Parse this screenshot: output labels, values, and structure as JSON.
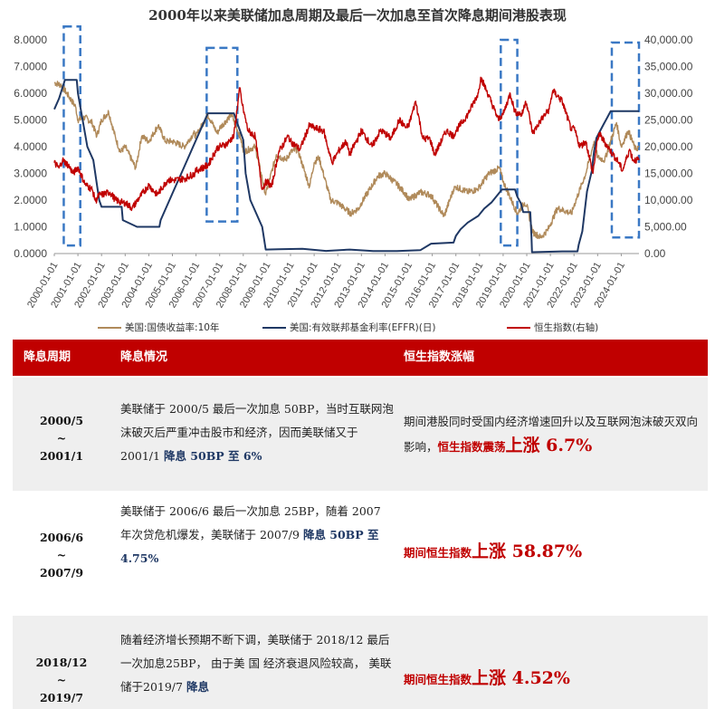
{
  "chart_data": {
    "type": "line",
    "title": "2000年以来美联储加息周期及最后一次加息至首次降息期间港股表现",
    "x_ticks": [
      "2000-01-01",
      "2001-01-01",
      "2002-01-01",
      "2003-01-01",
      "2004-01-01",
      "2005-01-01",
      "2006-01-01",
      "2007-01-01",
      "2008-01-01",
      "2009-01-01",
      "2010-01-01",
      "2011-01-01",
      "2012-01-01",
      "2013-01-01",
      "2014-01-01",
      "2015-01-01",
      "2016-01-01",
      "2017-01-01",
      "2018-01-01",
      "2019-01-01",
      "2020-01-01",
      "2021-01-01",
      "2022-01-01",
      "2023-01-01",
      "2024-01-01"
    ],
    "x_range": [
      2000.0,
      2024.75
    ],
    "y_left": {
      "range": [
        0,
        8
      ],
      "ticks": [
        "0.0000",
        "1.0000",
        "2.0000",
        "3.0000",
        "4.0000",
        "5.0000",
        "6.0000",
        "7.0000",
        "8.0000"
      ]
    },
    "y_right": {
      "range": [
        0,
        40000
      ],
      "ticks": [
        "0.00",
        "5,000.00",
        "10,000.00",
        "15,000.00",
        "20,000.00",
        "25,000.00",
        "30,000.00",
        "35,000.00",
        "40,000.00"
      ]
    },
    "series": [
      {
        "name": "美国:国债收益率:10年",
        "axis": "left",
        "color": "#b08a5a",
        "points": [
          [
            2000.0,
            6.4
          ],
          [
            2000.3,
            6.3
          ],
          [
            2000.6,
            5.9
          ],
          [
            2000.9,
            5.5
          ],
          [
            2001.0,
            5.0
          ],
          [
            2001.3,
            5.1
          ],
          [
            2001.6,
            4.9
          ],
          [
            2001.8,
            4.4
          ],
          [
            2002.0,
            5.0
          ],
          [
            2002.3,
            5.3
          ],
          [
            2002.6,
            4.3
          ],
          [
            2002.8,
            3.8
          ],
          [
            2003.0,
            4.0
          ],
          [
            2003.45,
            3.2
          ],
          [
            2003.7,
            4.4
          ],
          [
            2004.0,
            4.2
          ],
          [
            2004.4,
            4.8
          ],
          [
            2004.7,
            4.2
          ],
          [
            2005.0,
            4.2
          ],
          [
            2005.5,
            4.0
          ],
          [
            2005.9,
            4.5
          ],
          [
            2006.0,
            4.4
          ],
          [
            2006.5,
            5.2
          ],
          [
            2006.9,
            4.5
          ],
          [
            2007.0,
            4.7
          ],
          [
            2007.5,
            5.2
          ],
          [
            2007.9,
            4.3
          ],
          [
            2008.0,
            3.8
          ],
          [
            2008.5,
            4.0
          ],
          [
            2008.95,
            2.2
          ],
          [
            2009.0,
            2.4
          ],
          [
            2009.4,
            3.7
          ],
          [
            2009.8,
            3.5
          ],
          [
            2010.0,
            3.8
          ],
          [
            2010.3,
            3.9
          ],
          [
            2010.8,
            2.5
          ],
          [
            2011.0,
            3.4
          ],
          [
            2011.2,
            3.6
          ],
          [
            2011.7,
            2.0
          ],
          [
            2012.0,
            1.9
          ],
          [
            2012.55,
            1.5
          ],
          [
            2012.9,
            1.7
          ],
          [
            2013.0,
            1.9
          ],
          [
            2013.7,
            2.9
          ],
          [
            2014.0,
            3.0
          ],
          [
            2014.5,
            2.6
          ],
          [
            2014.9,
            2.2
          ],
          [
            2015.0,
            2.0
          ],
          [
            2015.5,
            2.3
          ],
          [
            2015.9,
            2.2
          ],
          [
            2016.0,
            2.1
          ],
          [
            2016.5,
            1.4
          ],
          [
            2016.9,
            2.4
          ],
          [
            2017.0,
            2.5
          ],
          [
            2017.5,
            2.3
          ],
          [
            2017.9,
            2.4
          ],
          [
            2018.0,
            2.5
          ],
          [
            2018.4,
            3.0
          ],
          [
            2018.85,
            3.2
          ],
          [
            2019.0,
            2.7
          ],
          [
            2019.6,
            1.5
          ],
          [
            2019.9,
            1.9
          ],
          [
            2020.0,
            1.8
          ],
          [
            2020.25,
            0.8
          ],
          [
            2020.6,
            0.6
          ],
          [
            2020.9,
            0.9
          ],
          [
            2021.0,
            1.1
          ],
          [
            2021.3,
            1.7
          ],
          [
            2021.9,
            1.5
          ],
          [
            2022.0,
            1.8
          ],
          [
            2022.5,
            3.0
          ],
          [
            2022.85,
            4.2
          ],
          [
            2023.0,
            3.6
          ],
          [
            2023.3,
            3.5
          ],
          [
            2023.8,
            4.9
          ],
          [
            2024.0,
            4.0
          ],
          [
            2024.3,
            4.6
          ],
          [
            2024.6,
            3.9
          ],
          [
            2024.75,
            4.0
          ]
        ]
      },
      {
        "name": "美国:有效联邦基金利率(EFFR)(日)",
        "axis": "left",
        "color": "#1f3864",
        "points": [
          [
            2000.0,
            5.4
          ],
          [
            2000.2,
            5.8
          ],
          [
            2000.45,
            6.5
          ],
          [
            2000.95,
            6.5
          ],
          [
            2001.0,
            6.0
          ],
          [
            2001.2,
            5.0
          ],
          [
            2001.4,
            4.0
          ],
          [
            2001.65,
            3.5
          ],
          [
            2001.9,
            2.0
          ],
          [
            2002.0,
            1.75
          ],
          [
            2002.85,
            1.75
          ],
          [
            2002.9,
            1.25
          ],
          [
            2003.5,
            1.0
          ],
          [
            2004.45,
            1.0
          ],
          [
            2004.5,
            1.25
          ],
          [
            2005.0,
            2.25
          ],
          [
            2005.5,
            3.25
          ],
          [
            2006.0,
            4.25
          ],
          [
            2006.5,
            5.25
          ],
          [
            2007.6,
            5.25
          ],
          [
            2007.8,
            4.75
          ],
          [
            2008.0,
            4.25
          ],
          [
            2008.1,
            3.0
          ],
          [
            2008.3,
            2.0
          ],
          [
            2008.8,
            1.0
          ],
          [
            2008.95,
            0.15
          ],
          [
            2009.5,
            0.16
          ],
          [
            2010.5,
            0.18
          ],
          [
            2011.5,
            0.1
          ],
          [
            2012.5,
            0.15
          ],
          [
            2013.5,
            0.09
          ],
          [
            2014.5,
            0.09
          ],
          [
            2015.5,
            0.13
          ],
          [
            2015.95,
            0.37
          ],
          [
            2016.9,
            0.41
          ],
          [
            2017.0,
            0.66
          ],
          [
            2017.2,
            0.91
          ],
          [
            2017.5,
            1.16
          ],
          [
            2017.95,
            1.41
          ],
          [
            2018.2,
            1.68
          ],
          [
            2018.5,
            1.91
          ],
          [
            2018.75,
            2.18
          ],
          [
            2018.95,
            2.4
          ],
          [
            2019.5,
            2.4
          ],
          [
            2019.6,
            2.13
          ],
          [
            2019.75,
            1.88
          ],
          [
            2019.85,
            1.55
          ],
          [
            2020.15,
            1.55
          ],
          [
            2020.2,
            0.65
          ],
          [
            2020.22,
            0.05
          ],
          [
            2021.5,
            0.08
          ],
          [
            2022.15,
            0.08
          ],
          [
            2022.2,
            0.33
          ],
          [
            2022.35,
            0.83
          ],
          [
            2022.45,
            1.58
          ],
          [
            2022.55,
            2.33
          ],
          [
            2022.75,
            3.08
          ],
          [
            2022.85,
            3.83
          ],
          [
            2022.95,
            4.33
          ],
          [
            2023.1,
            4.58
          ],
          [
            2023.25,
            4.83
          ],
          [
            2023.4,
            5.08
          ],
          [
            2023.55,
            5.33
          ],
          [
            2024.75,
            5.33
          ]
        ]
      },
      {
        "name": "恒生指数(右轴)",
        "axis": "right",
        "color": "#c00000",
        "points": [
          [
            2000.0,
            17000
          ],
          [
            2000.2,
            16000
          ],
          [
            2000.35,
            17500
          ],
          [
            2000.6,
            16500
          ],
          [
            2000.8,
            15000
          ],
          [
            2001.0,
            16200
          ],
          [
            2001.3,
            13000
          ],
          [
            2001.6,
            12000
          ],
          [
            2001.75,
            9800
          ],
          [
            2001.9,
            11000
          ],
          [
            2002.0,
            11000
          ],
          [
            2002.35,
            11500
          ],
          [
            2002.6,
            10000
          ],
          [
            2002.9,
            9500
          ],
          [
            2003.0,
            9500
          ],
          [
            2003.3,
            8500
          ],
          [
            2003.6,
            10500
          ],
          [
            2003.95,
            12500
          ],
          [
            2004.0,
            12800
          ],
          [
            2004.35,
            11000
          ],
          [
            2004.8,
            13800
          ],
          [
            2005.0,
            13700
          ],
          [
            2005.5,
            14000
          ],
          [
            2005.95,
            15000
          ],
          [
            2006.0,
            15500
          ],
          [
            2006.5,
            16500
          ],
          [
            2006.9,
            19800
          ],
          [
            2007.0,
            20000
          ],
          [
            2007.3,
            20500
          ],
          [
            2007.6,
            22000
          ],
          [
            2007.85,
            31000
          ],
          [
            2007.95,
            28000
          ],
          [
            2008.0,
            27000
          ],
          [
            2008.2,
            23000
          ],
          [
            2008.5,
            22000
          ],
          [
            2008.8,
            12000
          ],
          [
            2008.9,
            13000
          ],
          [
            2009.0,
            13500
          ],
          [
            2009.2,
            12500
          ],
          [
            2009.5,
            19000
          ],
          [
            2009.9,
            22000
          ],
          [
            2010.0,
            21000
          ],
          [
            2010.4,
            19500
          ],
          [
            2010.8,
            24000
          ],
          [
            2011.0,
            23500
          ],
          [
            2011.4,
            23000
          ],
          [
            2011.75,
            17000
          ],
          [
            2011.95,
            18500
          ],
          [
            2012.0,
            19000
          ],
          [
            2012.35,
            21000
          ],
          [
            2012.5,
            18500
          ],
          [
            2012.95,
            22500
          ],
          [
            2013.0,
            23000
          ],
          [
            2013.45,
            20000
          ],
          [
            2013.8,
            23000
          ],
          [
            2014.0,
            22500
          ],
          [
            2014.25,
            21500
          ],
          [
            2014.6,
            25000
          ],
          [
            2014.9,
            23500
          ],
          [
            2015.0,
            24000
          ],
          [
            2015.3,
            28500
          ],
          [
            2015.6,
            21500
          ],
          [
            2015.9,
            21500
          ],
          [
            2016.0,
            20000
          ],
          [
            2016.1,
            18500
          ],
          [
            2016.6,
            23000
          ],
          [
            2016.9,
            22000
          ],
          [
            2017.0,
            23000
          ],
          [
            2017.5,
            26000
          ],
          [
            2017.95,
            30000
          ],
          [
            2018.05,
            33000
          ],
          [
            2018.3,
            30500
          ],
          [
            2018.8,
            25000
          ],
          [
            2018.95,
            26000
          ],
          [
            2019.0,
            26000
          ],
          [
            2019.3,
            30000
          ],
          [
            2019.5,
            26500
          ],
          [
            2019.8,
            26000
          ],
          [
            2019.95,
            28500
          ],
          [
            2020.0,
            28000
          ],
          [
            2020.25,
            22500
          ],
          [
            2020.6,
            25000
          ],
          [
            2020.95,
            27000
          ],
          [
            2021.1,
            30500
          ],
          [
            2021.5,
            28500
          ],
          [
            2021.9,
            23000
          ],
          [
            2022.0,
            23500
          ],
          [
            2022.25,
            20000
          ],
          [
            2022.5,
            21000
          ],
          [
            2022.8,
            15000
          ],
          [
            2022.95,
            20000
          ],
          [
            2023.05,
            22500
          ],
          [
            2023.5,
            19500
          ],
          [
            2023.9,
            17000
          ],
          [
            2024.05,
            15500
          ],
          [
            2024.35,
            19500
          ],
          [
            2024.5,
            17500
          ],
          [
            2024.75,
            17500
          ]
        ]
      }
    ],
    "highlight_periods": [
      {
        "from": 2000.4,
        "to": 2001.1,
        "left_range": [
          0.3,
          8.5
        ]
      },
      {
        "from": 2006.45,
        "to": 2007.75,
        "left_range": [
          1.2,
          7.7
        ]
      },
      {
        "from": 2018.9,
        "to": 2019.6,
        "left_range": [
          0.3,
          8.0
        ]
      },
      {
        "from": 2023.6,
        "to": 2024.75,
        "left_range": [
          0.6,
          7.9
        ]
      }
    ],
    "legend_position": "bottom"
  },
  "table": {
    "headers": [
      "降息周期",
      "降息情况",
      "恒生指数涨幅"
    ],
    "rows": [
      {
        "period_start": "2000/5",
        "period_sep": "~",
        "period_end": "2001/1",
        "desc_text": "美联储于 2000/5 最后一次加息 50BP，当时互联网泡沫破灭后严重冲击股市和经济，因而美联储又于 2001/1 ",
        "desc_highlight": "降息 50BP 至 6%",
        "perf_text": "期间港股同时受国内经济增速回升以及互联网泡沫破灭双向影响，",
        "perf_red": "恒生指数震荡",
        "perf_big": "上涨 6.7%"
      },
      {
        "period_start": "2006/6",
        "period_sep": "~",
        "period_end": "2007/9",
        "desc_text": "美联储于 2006/6 最后一次加息 25BP，随着 2007 年次贷危机爆发，美联储于 2007/9 ",
        "desc_highlight": "降息 50BP 至 4.75%",
        "perf_text": "",
        "perf_red": "期间恒生指数",
        "perf_big": "上涨 58.87%"
      },
      {
        "period_start": "2018/12",
        "period_sep": "~",
        "period_end": "2019/7",
        "desc_text": "随着经济增长预期不断下调，美联储于 2018/12 最后一次加息25BP， 由于美 国 经济衰退风险较高， 美联储于2019/7 ",
        "desc_highlight": "降息",
        "perf_text": "",
        "perf_red": "期间恒生指数",
        "perf_big": "上涨 4.52%"
      }
    ]
  }
}
